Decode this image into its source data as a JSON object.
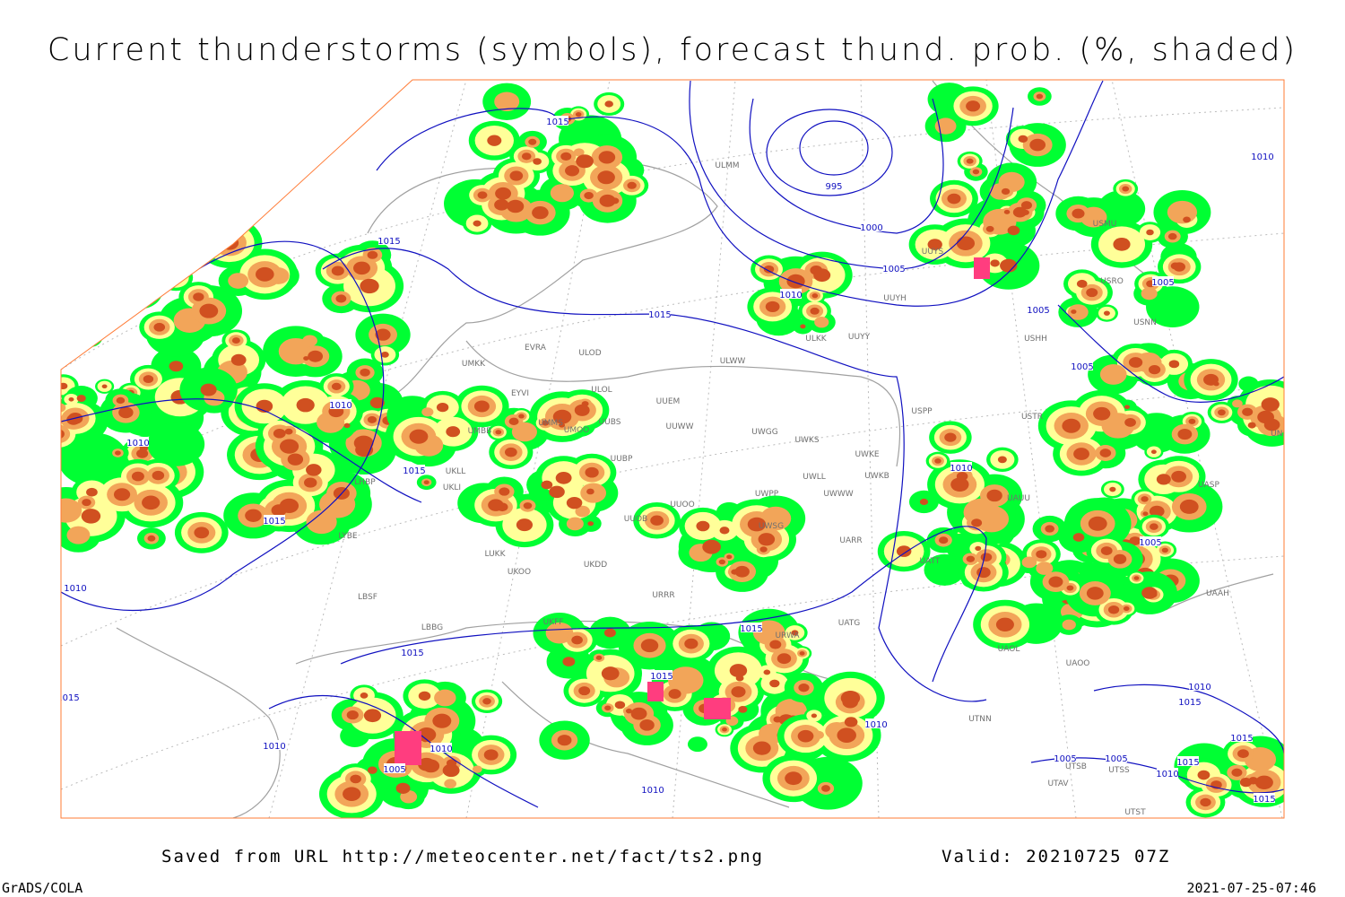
{
  "header": {
    "title": "Current thunderstorms (symbols), forecast thund. prob. (%, shaded)"
  },
  "footer": {
    "source": "Saved from URL http://meteocenter.net/fact/ts2.png",
    "valid": "Valid: 20210725 07Z",
    "software": "GrADS/COLA",
    "timestamp": "2021-07-25-07:46"
  },
  "isobar_labels": [
    "1015",
    "995",
    "1000",
    "1005",
    "1010",
    "1015",
    "1015",
    "1010",
    "1010",
    "1015",
    "1015",
    "1010",
    "1015",
    "1015",
    "1015",
    "1010",
    "1010",
    "1005",
    "1010",
    "1010",
    "1005",
    "1005",
    "1005",
    "1010",
    "1005",
    "1010",
    "1015",
    "1005",
    "1005",
    "1010",
    "1015",
    "1010",
    "1015",
    "1015",
    "1015"
  ],
  "stations": [
    "ULMM",
    "UUYS",
    "UUYH",
    "ULKK",
    "UUYY",
    "ULWW",
    "ULOL",
    "UUEM",
    "UUWW",
    "UWGG",
    "UWKS",
    "UWKE",
    "UWKB",
    "UWLL",
    "UWWW",
    "UWPP",
    "UUOB",
    "UUOO",
    "UWSG",
    "UARR",
    "UUBP",
    "UUBS",
    "UMOO",
    "UMMS",
    "UMBB",
    "UKLL",
    "UKLI",
    "LHBP",
    "LYBE",
    "LUKK",
    "UKOO",
    "UKDD",
    "URRR",
    "LBSF",
    "LBBG",
    "UKFF",
    "URWA",
    "UATG",
    "USPP",
    "USTR",
    "UAUU",
    "UATT",
    "UAOL",
    "UAOO",
    "UTNN",
    "USHH",
    "USMU",
    "USRO",
    "USNN",
    "UASP",
    "UAAH",
    "UNBB",
    "EVRA",
    "ULOD",
    "UMKK",
    "EYVI",
    "UTSS",
    "UTSB",
    "UTAV",
    "UTST"
  ]
}
